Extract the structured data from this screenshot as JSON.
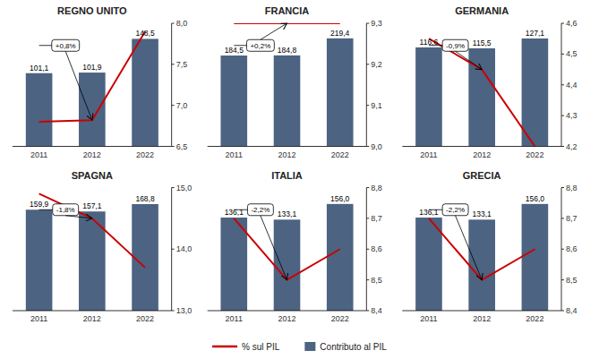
{
  "chart_data": [
    {
      "type": "bar",
      "title": "REGNO UNITO",
      "categories": [
        "2011",
        "2012",
        "2022"
      ],
      "series": [
        {
          "name": "Contributo al PIL",
          "type": "bar",
          "color": "#4C6382",
          "values": [
            101.1,
            101.9,
            148.5
          ],
          "value_labels": [
            "101,1",
            "101,9",
            "148,5"
          ],
          "data_labels": true
        },
        {
          "name": "% sul PIL",
          "type": "line",
          "axis": "y2",
          "color": "#CC0000",
          "values": [
            6.8,
            6.82,
            7.9
          ]
        }
      ],
      "ylim": [
        0,
        170
      ],
      "yticks": [],
      "y2lim": [
        6.5,
        8.0
      ],
      "y2ticks": [
        {
          "value": 6.5,
          "label": "6,5"
        },
        {
          "value": 7.0,
          "label": "7,0"
        },
        {
          "value": 7.5,
          "label": "7,5"
        },
        {
          "value": 8.0,
          "label": "8,0"
        }
      ],
      "annotations": [
        {
          "text": "+0,8%",
          "x": "2012"
        }
      ],
      "legend": "bottom"
    },
    {
      "type": "bar",
      "title": "FRANCIA",
      "categories": [
        "2011",
        "2012",
        "2022"
      ],
      "series": [
        {
          "type": "bar",
          "color": "#4C6382",
          "values": [
            184.5,
            184.8,
            219.4
          ],
          "value_labels": [
            "184,5",
            "184,8",
            "219,4"
          ],
          "data_labels": true
        },
        {
          "type": "line",
          "axis": "y2",
          "color": "#CC0000",
          "values": [
            9.3,
            9.3,
            9.3
          ]
        }
      ],
      "ylim": [
        0,
        250
      ],
      "yticks": [],
      "y2lim": [
        9.0,
        9.3
      ],
      "y2ticks": [
        {
          "value": 9.0,
          "label": "9,0"
        },
        {
          "value": 9.1,
          "label": "9,1"
        },
        {
          "value": 9.2,
          "label": "9,2"
        },
        {
          "value": 9.3,
          "label": "9,3"
        }
      ],
      "annotations": [
        {
          "text": "+0,2%",
          "x": "2012"
        }
      ]
    },
    {
      "type": "bar",
      "title": "GERMANIA",
      "categories": [
        "2011",
        "2012",
        "2022"
      ],
      "series": [
        {
          "type": "bar",
          "color": "#4C6382",
          "values": [
            116.6,
            115.5,
            127.1
          ],
          "value_labels": [
            "116,6",
            "115,5",
            "127,1"
          ],
          "data_labels": true
        },
        {
          "type": "line",
          "axis": "y2",
          "color": "#CC0000",
          "values": [
            4.55,
            4.45,
            4.2
          ]
        }
      ],
      "ylim": [
        0,
        145
      ],
      "yticks": [],
      "y2lim": [
        4.2,
        4.6
      ],
      "y2ticks": [
        {
          "value": 4.2,
          "label": "4,2"
        },
        {
          "value": 4.3,
          "label": "4,3"
        },
        {
          "value": 4.4,
          "label": "4,4"
        },
        {
          "value": 4.5,
          "label": "4,5"
        },
        {
          "value": 4.6,
          "label": "4,6"
        }
      ],
      "annotations": [
        {
          "text": "-0,9%",
          "x": "2012"
        }
      ]
    },
    {
      "type": "bar",
      "title": "SPAGNA",
      "categories": [
        "2011",
        "2012",
        "2022"
      ],
      "series": [
        {
          "type": "bar",
          "color": "#4C6382",
          "values": [
            159.9,
            157.1,
            168.8
          ],
          "value_labels": [
            "159,9",
            "157,1",
            "168,8"
          ],
          "data_labels": true
        },
        {
          "type": "line",
          "axis": "y2",
          "color": "#CC0000",
          "values": [
            14.9,
            14.5,
            13.7
          ]
        }
      ],
      "ylim": [
        0,
        195
      ],
      "yticks": [],
      "y2lim": [
        13.0,
        15.0
      ],
      "y2ticks": [
        {
          "value": 13.0,
          "label": "13,0"
        },
        {
          "value": 14.0,
          "label": "14,0"
        },
        {
          "value": 15.0,
          "label": "15,0"
        }
      ],
      "annotations": [
        {
          "text": "-1,8%",
          "x": "2012"
        }
      ]
    },
    {
      "type": "bar",
      "title": "ITALIA",
      "categories": [
        "2011",
        "2012",
        "2022"
      ],
      "series": [
        {
          "type": "bar",
          "color": "#4C6382",
          "values": [
            136.1,
            133.1,
            156.0
          ],
          "value_labels": [
            "136,1",
            "133,1",
            "156,0"
          ],
          "data_labels": true
        },
        {
          "type": "line",
          "axis": "y2",
          "color": "#CC0000",
          "values": [
            8.7,
            8.5,
            8.6
          ]
        }
      ],
      "ylim": [
        0,
        180
      ],
      "yticks": [],
      "y2lim": [
        8.4,
        8.8
      ],
      "y2ticks": [
        {
          "value": 8.4,
          "label": "8,4"
        },
        {
          "value": 8.5,
          "label": "8,5"
        },
        {
          "value": 8.6,
          "label": "8,6"
        },
        {
          "value": 8.7,
          "label": "8,7"
        },
        {
          "value": 8.8,
          "label": "8,8"
        }
      ],
      "annotations": [
        {
          "text": "-2,2%",
          "x": "2012"
        }
      ]
    },
    {
      "type": "bar",
      "title": "GRECIA",
      "categories": [
        "2011",
        "2012",
        "2022"
      ],
      "series": [
        {
          "type": "bar",
          "color": "#4C6382",
          "values": [
            136.1,
            133.1,
            156.0
          ],
          "value_labels": [
            "136,1",
            "133,1",
            "156,0"
          ],
          "data_labels": true
        },
        {
          "type": "line",
          "axis": "y2",
          "color": "#CC0000",
          "values": [
            8.7,
            8.5,
            8.6
          ]
        }
      ],
      "ylim": [
        0,
        180
      ],
      "yticks": [],
      "y2lim": [
        8.4,
        8.8
      ],
      "y2ticks": [
        {
          "value": 8.4,
          "label": "8,4"
        },
        {
          "value": 8.5,
          "label": "8,5"
        },
        {
          "value": 8.6,
          "label": "8,6"
        },
        {
          "value": 8.7,
          "label": "8,7"
        },
        {
          "value": 8.8,
          "label": "8,8"
        }
      ],
      "annotations": [
        {
          "text": "-2,2%",
          "x": "2012"
        }
      ]
    }
  ]
}
